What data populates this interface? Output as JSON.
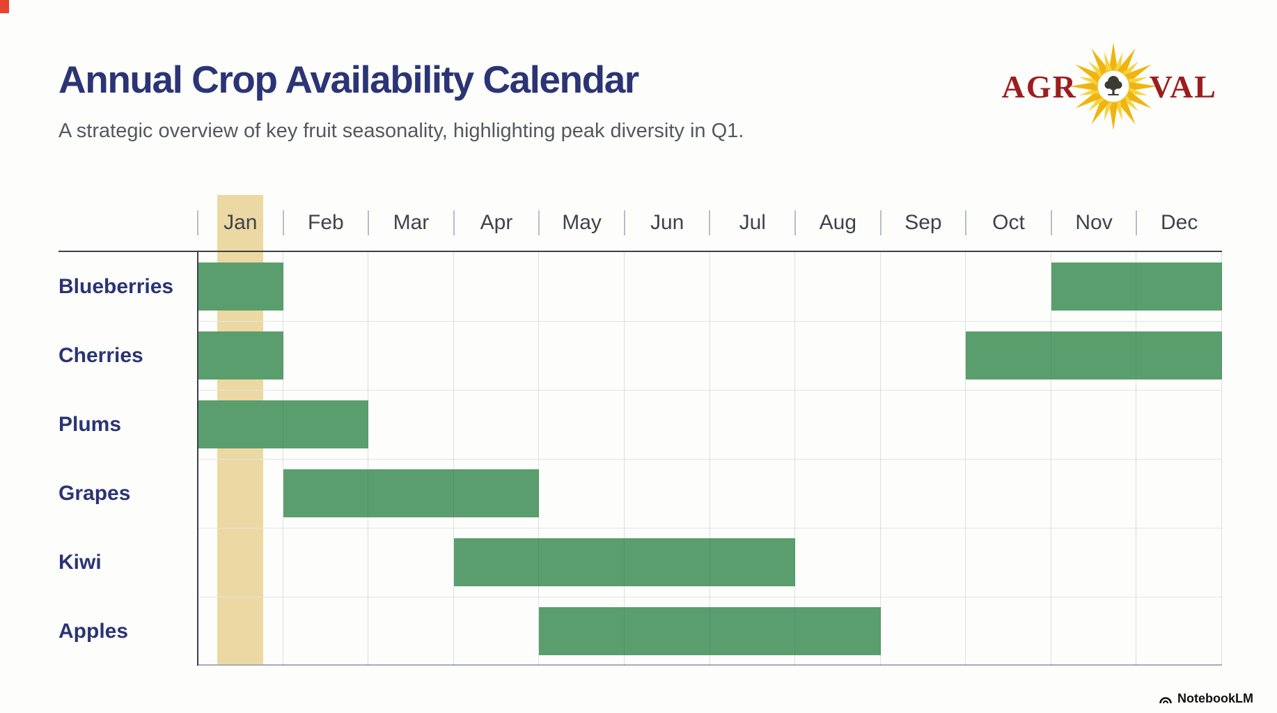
{
  "header": {
    "title": "Annual Crop Availability Calendar",
    "subtitle": "A strategic overview of key fruit seasonality, highlighting peak diversity in Q1."
  },
  "logo": {
    "text_left": "AGR",
    "text_right": "VAL",
    "sun_icon": "sunburst-with-tree"
  },
  "colors": {
    "navy": "#2b3474",
    "logo_red": "#9d1d1f",
    "subtitle_gray": "#54585e",
    "month_label_gray": "#3e434a"
  },
  "chart_data": {
    "type": "gantt",
    "title": "Annual Crop Availability Calendar",
    "months": [
      "Jan",
      "Feb",
      "Mar",
      "Apr",
      "May",
      "Jun",
      "Jul",
      "Aug",
      "Sep",
      "Oct",
      "Nov",
      "Dec"
    ],
    "rows": [
      {
        "label": "Blueberries",
        "spans": [
          {
            "start": "Jan",
            "end": "Jan"
          },
          {
            "start": "Nov",
            "end": "Dec"
          }
        ]
      },
      {
        "label": "Cherries",
        "spans": [
          {
            "start": "Jan",
            "end": "Jan"
          },
          {
            "start": "Oct",
            "end": "Dec"
          }
        ]
      },
      {
        "label": "Plums",
        "spans": [
          {
            "start": "Jan",
            "end": "Feb"
          }
        ]
      },
      {
        "label": "Grapes",
        "spans": [
          {
            "start": "Feb",
            "end": "Apr"
          }
        ]
      },
      {
        "label": "Kiwi",
        "spans": [
          {
            "start": "Apr",
            "end": "Jul"
          }
        ]
      },
      {
        "label": "Apples",
        "spans": [
          {
            "start": "May",
            "end": "Aug"
          }
        ]
      }
    ],
    "highlight": {
      "month": "Jan",
      "color": "#ecd8a2"
    },
    "bar_color": "#5a9e6e",
    "grid": true,
    "legend": "none"
  },
  "watermark": {
    "label": "NotebookLM"
  }
}
